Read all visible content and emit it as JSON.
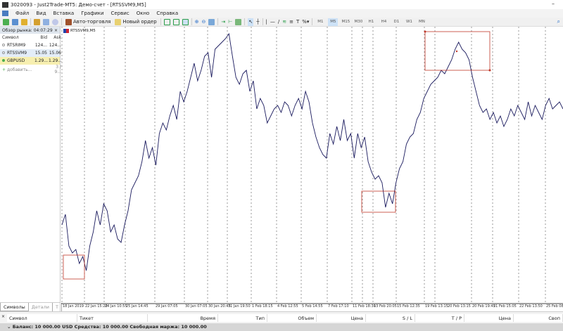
{
  "window": {
    "title": "3020093 - Just2Trade-MT5: Демо-счет - [RTSSVM9,M5]",
    "logo": "MT5"
  },
  "menu": [
    "Файл",
    "Вид",
    "Вставка",
    "Графики",
    "Сервис",
    "Окно",
    "Справка"
  ],
  "toolbar": {
    "autotrade_label": "Авто-торговля",
    "new_order_label": "Новый ордер",
    "timeframes": [
      "M1",
      "M5",
      "M15",
      "M30",
      "H1",
      "H4",
      "D1",
      "W1",
      "MN"
    ],
    "active_timeframe": "M5"
  },
  "market_watch": {
    "title": "Обзор рынка: 04:07:29",
    "columns": [
      "Символ",
      "Bid",
      "Ask"
    ],
    "rows": [
      {
        "symbol": "RTSRIM9",
        "bid": "124...",
        "ask": "124..."
      },
      {
        "symbol": "RTSSVM9",
        "bid": "15.05",
        "ask": "15.06"
      },
      {
        "symbol": "GBPUSD",
        "bid": "1.29...",
        "ask": "1.29..."
      }
    ],
    "add_label": "добавить...",
    "count": "3 / 9...",
    "tabs": [
      "Символы",
      "Детали",
      "Т"
    ]
  },
  "chart_data": {
    "type": "line",
    "title": "RTSSVM9,M5",
    "accent": "#1a1a5e",
    "grid": "vertical dashed at session breaks",
    "x_ticks": [
      "18 Jan 2019",
      "22 Jan 15:20",
      "24 Jan 10:55",
      "25 Jan 14:45",
      "29 Jan 07:05",
      "30 Jan 07:05",
      "30 Jan 20:45",
      "31 Jan 19:50",
      "1 Feb 18:15",
      "4 Feb 12:55",
      "5 Feb 14:55",
      "7 Feb 17:10",
      "11 Feb 18:30",
      "13 Feb 20:05",
      "15 Feb 12:35",
      "19 Feb 13:15",
      "20 Feb 13:15",
      "20 Feb 19:45",
      "21 Feb 15:05",
      "22 Feb 13:50",
      "25 Feb 08:00"
    ],
    "relative_values": [
      80,
      95,
      50,
      40,
      45,
      25,
      35,
      15,
      50,
      70,
      100,
      80,
      110,
      100,
      70,
      80,
      60,
      55,
      80,
      100,
      130,
      140,
      150,
      170,
      200,
      175,
      190,
      165,
      210,
      225,
      215,
      235,
      250,
      230,
      270,
      255,
      270,
      290,
      310,
      285,
      300,
      320,
      325,
      290,
      330,
      335,
      340,
      345,
      352,
      320,
      290,
      280,
      295,
      300,
      270,
      285,
      245,
      260,
      250,
      225,
      235,
      245,
      250,
      240,
      255,
      250,
      235,
      250,
      260,
      245,
      270,
      255,
      225,
      205,
      190,
      180,
      175,
      210,
      195,
      220,
      200,
      230,
      200,
      210,
      175,
      210,
      190,
      205,
      170,
      155,
      145,
      150,
      140,
      105,
      125,
      110,
      140,
      160,
      170,
      195,
      205,
      210,
      230,
      240,
      260,
      270,
      280,
      285,
      290,
      300,
      295,
      305,
      315,
      330,
      340,
      330,
      325,
      315,
      290,
      270,
      250,
      240,
      245,
      230,
      240,
      225,
      235,
      220,
      230,
      245,
      235,
      250,
      240,
      230,
      255,
      235,
      250,
      240,
      230,
      250,
      260,
      245,
      250,
      255,
      245
    ],
    "annotation_color": "#c0392b"
  },
  "terminal": {
    "columns": [
      "Символ",
      "Тикет",
      "Время",
      "Тип",
      "Объем",
      "Цена",
      "S / L",
      "T / P",
      "Цена",
      "Своп"
    ],
    "balance": "Баланс: 10 000.00 USD  Средства: 10 000.00  Свободная маржа: 10 000.00"
  }
}
